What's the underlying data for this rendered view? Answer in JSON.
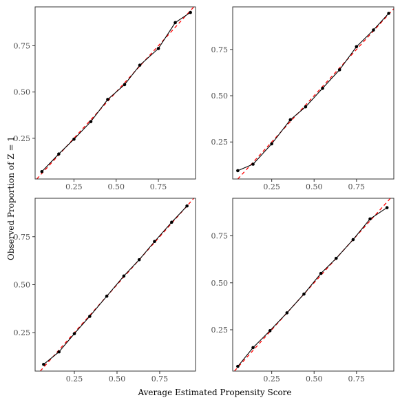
{
  "chart_data": {
    "type": "line",
    "xlabel": "Average Estimated Propensity Score",
    "ylabel": "Observed Proportion of Z = 1",
    "colors": {
      "observed": "#000000",
      "reference": "#ff0000",
      "panel_border": "#333333"
    },
    "reference_line": {
      "slope": 1,
      "intercept": 0,
      "style": "dashed"
    },
    "grid": false,
    "panels": [
      {
        "xlim": [
          0.02,
          0.97
        ],
        "ylim": [
          0.03,
          0.96
        ],
        "xticks": [
          0.25,
          0.5,
          0.75
        ],
        "xtick_labels": [
          "0.25",
          "0.50",
          "0.75"
        ],
        "yticks": [
          0.25,
          0.5,
          0.75
        ],
        "ytick_labels": [
          "0.25",
          "0.50",
          "0.75"
        ],
        "x": [
          0.06,
          0.16,
          0.25,
          0.35,
          0.45,
          0.55,
          0.64,
          0.75,
          0.85,
          0.94
        ],
        "y": [
          0.07,
          0.165,
          0.245,
          0.34,
          0.46,
          0.54,
          0.645,
          0.735,
          0.875,
          0.93
        ]
      },
      {
        "xlim": [
          0.02,
          0.97
        ],
        "ylim": [
          0.05,
          0.98
        ],
        "xticks": [
          0.25,
          0.5,
          0.75
        ],
        "xtick_labels": [
          "0.25",
          "0.50",
          "0.75"
        ],
        "yticks": [
          0.25,
          0.5,
          0.75
        ],
        "ytick_labels": [
          "0.25",
          "0.50",
          "0.75"
        ],
        "x": [
          0.05,
          0.14,
          0.25,
          0.36,
          0.45,
          0.55,
          0.65,
          0.75,
          0.85,
          0.94
        ],
        "y": [
          0.095,
          0.13,
          0.24,
          0.37,
          0.44,
          0.54,
          0.64,
          0.765,
          0.855,
          0.945
        ]
      },
      {
        "xlim": [
          0.02,
          0.96
        ],
        "ylim": [
          0.05,
          0.95
        ],
        "xticks": [
          0.25,
          0.5,
          0.75
        ],
        "xtick_labels": [
          "0.25",
          "0.50",
          "0.75"
        ],
        "yticks": [
          0.25,
          0.5,
          0.75
        ],
        "ytick_labels": [
          "0.25",
          "0.50",
          "0.75"
        ],
        "x": [
          0.07,
          0.16,
          0.25,
          0.34,
          0.44,
          0.54,
          0.63,
          0.72,
          0.82,
          0.91
        ],
        "y": [
          0.085,
          0.15,
          0.245,
          0.335,
          0.44,
          0.545,
          0.63,
          0.725,
          0.825,
          0.91
        ]
      },
      {
        "xlim": [
          0.02,
          0.97
        ],
        "ylim": [
          0.03,
          0.95
        ],
        "xticks": [
          0.25,
          0.5,
          0.75
        ],
        "xtick_labels": [
          "0.25",
          "0.50",
          "0.75"
        ],
        "yticks": [
          0.25,
          0.5,
          0.75
        ],
        "ytick_labels": [
          "0.25",
          "0.50",
          "0.75"
        ],
        "x": [
          0.05,
          0.14,
          0.24,
          0.34,
          0.44,
          0.54,
          0.63,
          0.73,
          0.83,
          0.93
        ],
        "y": [
          0.055,
          0.155,
          0.245,
          0.34,
          0.44,
          0.55,
          0.63,
          0.73,
          0.84,
          0.9
        ]
      }
    ]
  }
}
